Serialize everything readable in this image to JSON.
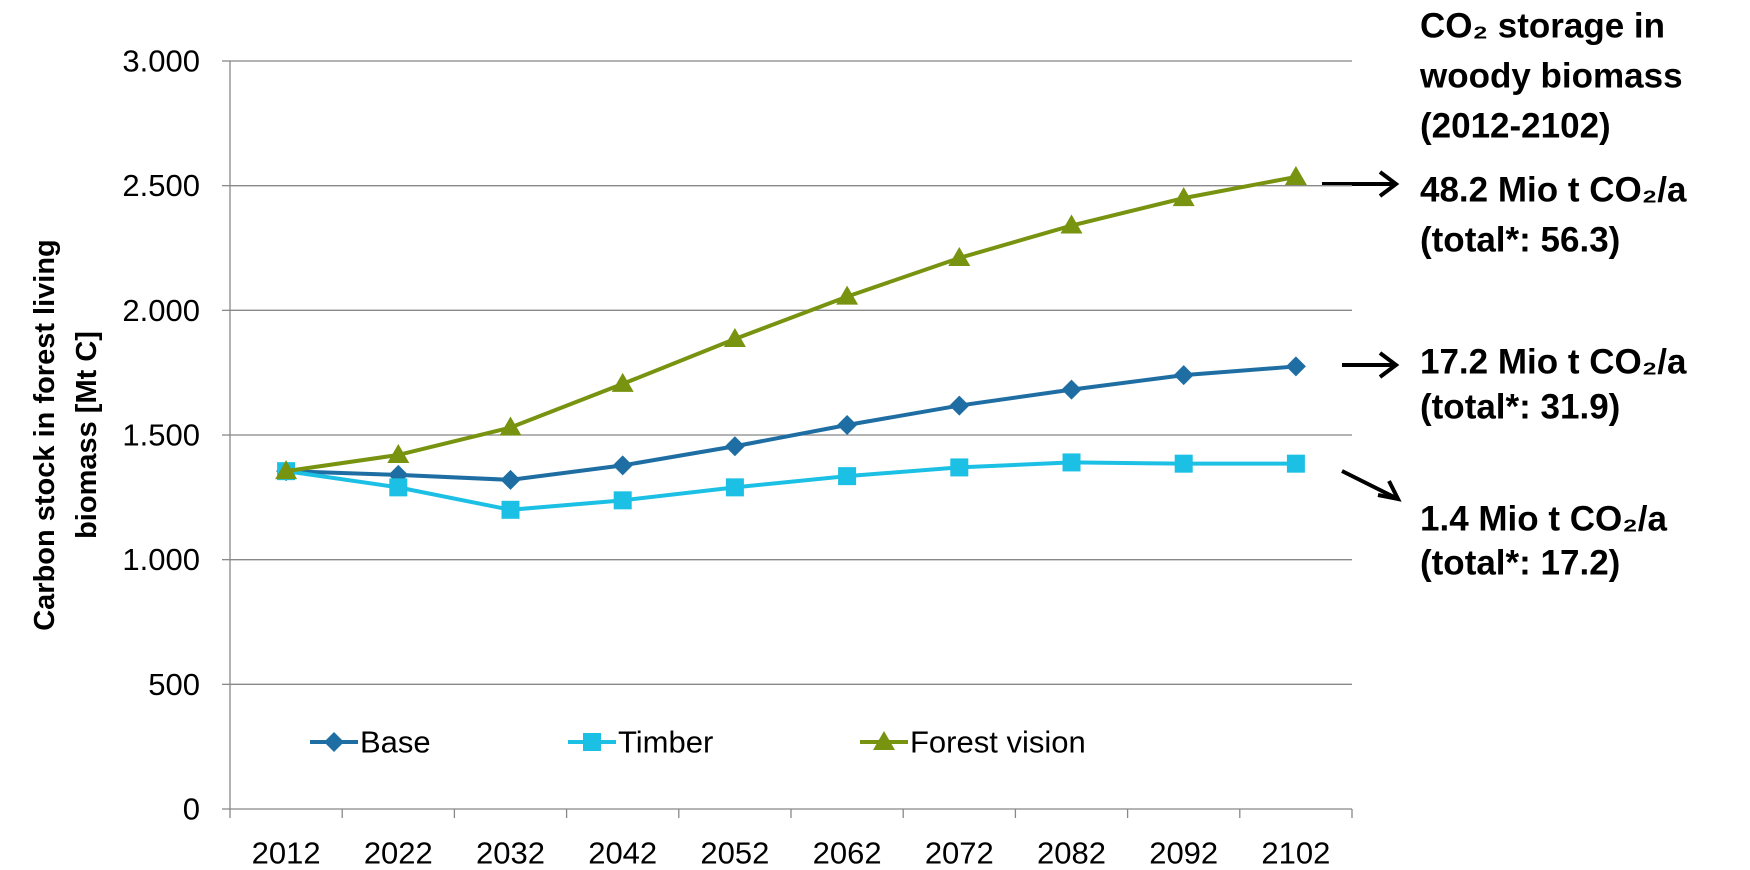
{
  "chart_data": {
    "type": "line",
    "y_label": [
      "Carbon stock in forest living",
      "biomass [Mt C]"
    ],
    "categories": [
      "2012",
      "2022",
      "2032",
      "2042",
      "2052",
      "2062",
      "2072",
      "2082",
      "2092",
      "2102"
    ],
    "series": [
      {
        "name": "Base",
        "color": "#1f6ea3",
        "marker": "diamond",
        "values": [
          1355,
          1340,
          1320,
          1378,
          1455,
          1540,
          1618,
          1682,
          1740,
          1775
        ]
      },
      {
        "name": "Timber",
        "color": "#1cc0e4",
        "marker": "square",
        "values": [
          1355,
          1290,
          1200,
          1238,
          1290,
          1335,
          1370,
          1390,
          1385,
          1385
        ]
      },
      {
        "name": "Forest vision",
        "color": "#77930f",
        "marker": "triangle",
        "values": [
          1355,
          1420,
          1530,
          1705,
          1885,
          2055,
          2210,
          2340,
          2450,
          2535
        ]
      }
    ],
    "ylim": [
      0,
      3000
    ],
    "yticks": [
      0,
      500,
      {
        "value": 1000,
        "label": "1.000"
      },
      {
        "value": 1500,
        "label": "1.500"
      },
      {
        "value": 2000,
        "label": "2.000"
      },
      {
        "value": 2500,
        "label": "2.500"
      },
      {
        "value": 3000,
        "label": "3.000"
      }
    ],
    "grid": true,
    "annotation_header": [
      "CO₂ storage in",
      "woody biomass",
      "(2012-2102)"
    ],
    "annotations": [
      [
        "48.2 Mio t CO₂/a",
        "(total*: 56.3)"
      ],
      [
        "17.2 Mio t CO₂/a",
        "(total*: 31.9)"
      ],
      [
        "1.4 Mio t CO₂/a",
        "(total*: 17.2)"
      ]
    ]
  }
}
